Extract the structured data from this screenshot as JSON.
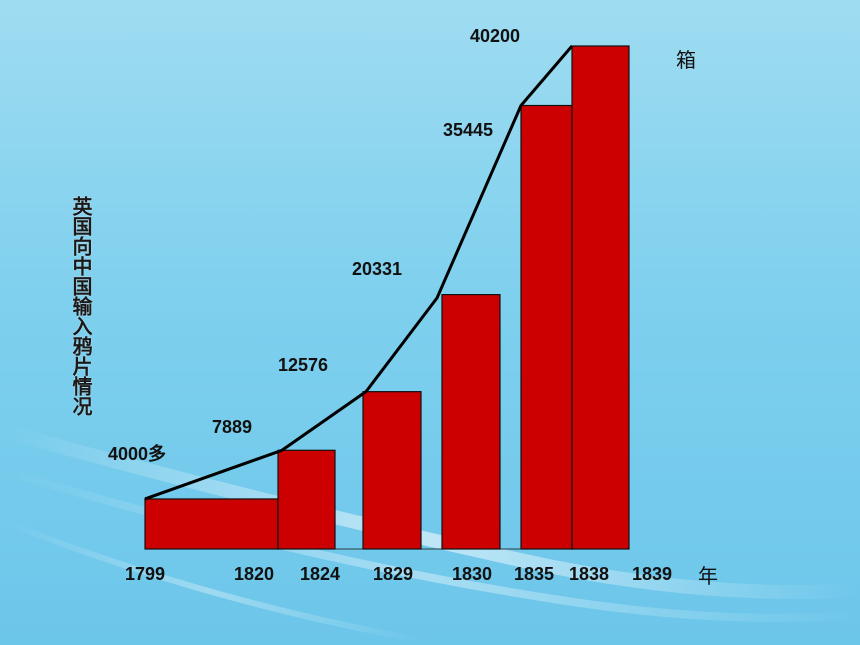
{
  "chart_data": {
    "type": "bar",
    "ylabel": "英国向中国输入鸦片情况",
    "y_unit": "箱",
    "x_unit": "年",
    "x_ticks": [
      "1799",
      "1820",
      "1824",
      "1829",
      "1830",
      "1835",
      "1838",
      "1839"
    ],
    "bars": [
      {
        "from": "1799",
        "to": "1820",
        "value": 4000,
        "label": "4000多"
      },
      {
        "from": "1820",
        "to": "1824",
        "value": 7889,
        "label": "7889"
      },
      {
        "from": "1829",
        "to": "1829",
        "value": 12576,
        "label": "12576"
      },
      {
        "from": "1830",
        "to": "1830",
        "value": 20331,
        "label": "20331"
      },
      {
        "from": "1835",
        "to": "1835",
        "value": 35445,
        "label": "35445"
      },
      {
        "from": "1838",
        "to": "1839",
        "value": 40200,
        "label": "40200"
      }
    ],
    "trend_line": true,
    "ylim": [
      0,
      40200
    ]
  },
  "colors": {
    "bar": "#cc0000",
    "bar_outline": "#111111",
    "line": "#000000"
  }
}
